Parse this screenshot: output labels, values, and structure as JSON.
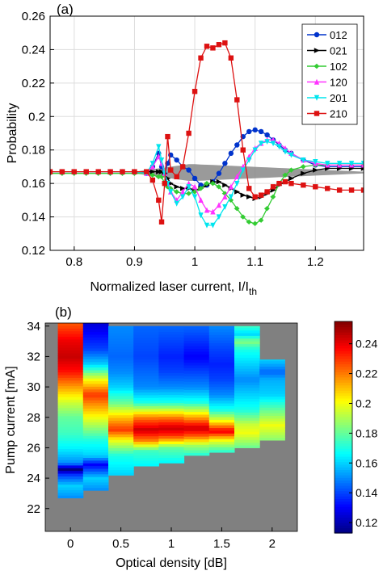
{
  "chart_data": [
    {
      "type": "line",
      "panel_label": "(a)",
      "xlabel": "Normalized laser current, I/I",
      "xlabel_sub": "th",
      "ylabel": "Probability",
      "xlim": [
        0.76,
        1.28
      ],
      "ylim": [
        0.12,
        0.26
      ],
      "xticks": [
        0.8,
        0.9,
        1,
        1.1,
        1.2
      ],
      "xtick_labels": [
        "0.8",
        "0.9",
        "1",
        "1.1",
        "1.2"
      ],
      "yticks": [
        0.12,
        0.14,
        0.16,
        0.18,
        0.2,
        0.22,
        0.24,
        0.26
      ],
      "ytick_labels": [
        "0.12",
        "0.14",
        "0.16",
        "0.18",
        "0.2",
        "0.22",
        "0.24",
        "0.26"
      ],
      "grid": true,
      "legend_position": "top-right",
      "x": [
        0.76,
        0.78,
        0.8,
        0.82,
        0.84,
        0.86,
        0.88,
        0.9,
        0.92,
        0.93,
        0.94,
        0.945,
        0.95,
        0.955,
        0.96,
        0.97,
        0.98,
        0.99,
        1.0,
        1.01,
        1.02,
        1.03,
        1.04,
        1.05,
        1.06,
        1.07,
        1.08,
        1.09,
        1.1,
        1.11,
        1.12,
        1.13,
        1.14,
        1.15,
        1.16,
        1.18,
        1.2,
        1.22,
        1.24,
        1.26,
        1.28
      ],
      "series": [
        {
          "name": "012",
          "color": "#0033cc",
          "marker": "circle",
          "values": [
            0.167,
            0.167,
            0.167,
            0.167,
            0.167,
            0.167,
            0.167,
            0.167,
            0.166,
            0.17,
            0.178,
            0.17,
            0.166,
            0.172,
            0.177,
            0.174,
            0.17,
            0.168,
            0.163,
            0.159,
            0.159,
            0.161,
            0.166,
            0.172,
            0.178,
            0.183,
            0.188,
            0.191,
            0.192,
            0.191,
            0.189,
            0.186,
            0.183,
            0.18,
            0.178,
            0.174,
            0.171,
            0.17,
            0.17,
            0.17,
            0.17
          ]
        },
        {
          "name": "021",
          "color": "#000000",
          "marker": "triangle-right",
          "values": [
            0.167,
            0.167,
            0.167,
            0.167,
            0.167,
            0.167,
            0.167,
            0.167,
            0.167,
            0.167,
            0.167,
            0.167,
            0.166,
            0.163,
            0.16,
            0.158,
            0.157,
            0.157,
            0.156,
            0.157,
            0.159,
            0.161,
            0.161,
            0.159,
            0.157,
            0.155,
            0.153,
            0.152,
            0.151,
            0.152,
            0.154,
            0.156,
            0.159,
            0.161,
            0.163,
            0.166,
            0.168,
            0.169,
            0.169,
            0.169,
            0.169
          ]
        },
        {
          "name": "102",
          "color": "#33cc33",
          "marker": "diamond-left",
          "values": [
            0.166,
            0.166,
            0.166,
            0.166,
            0.166,
            0.166,
            0.166,
            0.166,
            0.166,
            0.165,
            0.164,
            0.164,
            0.16,
            0.158,
            0.157,
            0.155,
            0.154,
            0.154,
            0.155,
            0.157,
            0.16,
            0.16,
            0.158,
            0.154,
            0.15,
            0.145,
            0.14,
            0.137,
            0.136,
            0.138,
            0.145,
            0.152,
            0.16,
            0.165,
            0.168,
            0.17,
            0.171,
            0.171,
            0.171,
            0.171,
            0.171
          ]
        },
        {
          "name": "120",
          "color": "#ff33ff",
          "marker": "triangle-up",
          "values": [
            0.167,
            0.167,
            0.167,
            0.167,
            0.167,
            0.167,
            0.167,
            0.167,
            0.166,
            0.17,
            0.176,
            0.172,
            0.166,
            0.16,
            0.155,
            0.15,
            0.155,
            0.16,
            0.158,
            0.15,
            0.144,
            0.143,
            0.147,
            0.152,
            0.158,
            0.164,
            0.17,
            0.176,
            0.181,
            0.184,
            0.186,
            0.186,
            0.184,
            0.181,
            0.178,
            0.174,
            0.172,
            0.171,
            0.171,
            0.171,
            0.171
          ]
        },
        {
          "name": "201",
          "color": "#00e5ee",
          "marker": "triangle-down",
          "values": [
            0.167,
            0.167,
            0.167,
            0.167,
            0.167,
            0.167,
            0.167,
            0.167,
            0.166,
            0.172,
            0.182,
            0.174,
            0.166,
            0.16,
            0.155,
            0.148,
            0.152,
            0.158,
            0.152,
            0.141,
            0.135,
            0.135,
            0.14,
            0.146,
            0.152,
            0.16,
            0.168,
            0.174,
            0.18,
            0.184,
            0.185,
            0.184,
            0.182,
            0.179,
            0.177,
            0.174,
            0.173,
            0.172,
            0.172,
            0.172,
            0.172
          ]
        },
        {
          "name": "210",
          "color": "#dd1111",
          "marker": "square",
          "values": [
            0.167,
            0.167,
            0.167,
            0.167,
            0.167,
            0.167,
            0.167,
            0.167,
            0.167,
            0.162,
            0.15,
            0.137,
            0.16,
            0.188,
            0.168,
            0.164,
            0.17,
            0.19,
            0.215,
            0.235,
            0.242,
            0.241,
            0.243,
            0.244,
            0.235,
            0.21,
            0.18,
            0.157,
            0.152,
            0.153,
            0.155,
            0.158,
            0.16,
            0.161,
            0.16,
            0.159,
            0.158,
            0.157,
            0.156,
            0.156,
            0.156
          ]
        }
      ]
    },
    {
      "type": "heatmap",
      "panel_label": "(b)",
      "xlabel": "Optical density [dB]",
      "ylabel": "Pump current [mA]",
      "xlim": [
        -0.25,
        2.25
      ],
      "ylim": [
        20.5,
        34.2
      ],
      "xticks": [
        0,
        0.5,
        1,
        1.5,
        2
      ],
      "xtick_labels": [
        "0",
        "0.5",
        "1",
        "1.5",
        "2"
      ],
      "yticks": [
        22,
        24,
        26,
        28,
        30,
        32,
        34
      ],
      "ytick_labels": [
        "22",
        "24",
        "26",
        "28",
        "30",
        "32",
        "34"
      ],
      "colorbar_range": [
        0.113,
        0.255
      ],
      "colorbar_ticks": [
        0.12,
        0.14,
        0.16,
        0.18,
        0.2,
        0.22,
        0.24
      ],
      "colorbar_tick_labels": [
        "0.12",
        "0.14",
        "0.16",
        "0.18",
        "0.2",
        "0.22",
        "0.24"
      ],
      "background_color": "#808080",
      "colormap": "jet",
      "columns": [
        {
          "density": 0.0,
          "i_min": 22.7,
          "i_max": 34.2,
          "stops": [
            [
              22.7,
              0.15
            ],
            [
              23.5,
              0.16
            ],
            [
              24.2,
              0.14
            ],
            [
              24.6,
              0.113
            ],
            [
              25.0,
              0.15
            ],
            [
              26.0,
              0.165
            ],
            [
              27.0,
              0.175
            ],
            [
              28.0,
              0.18
            ],
            [
              29.0,
              0.195
            ],
            [
              30.0,
              0.215
            ],
            [
              31.0,
              0.235
            ],
            [
              32.0,
              0.245
            ],
            [
              33.0,
              0.24
            ],
            [
              34.2,
              0.225
            ]
          ]
        },
        {
          "density": 0.25,
          "i_min": 23.2,
          "i_max": 34.2,
          "stops": [
            [
              23.2,
              0.15
            ],
            [
              24.0,
              0.16
            ],
            [
              24.9,
              0.13
            ],
            [
              25.5,
              0.16
            ],
            [
              26.5,
              0.17
            ],
            [
              27.5,
              0.19
            ],
            [
              28.5,
              0.21
            ],
            [
              29.5,
              0.23
            ],
            [
              30.5,
              0.2
            ],
            [
              31.5,
              0.16
            ],
            [
              32.5,
              0.14
            ],
            [
              34.2,
              0.125
            ]
          ]
        },
        {
          "density": 0.5,
          "i_min": 24.2,
          "i_max": 34.0,
          "stops": [
            [
              24.2,
              0.16
            ],
            [
              25.5,
              0.17
            ],
            [
              26.5,
              0.2
            ],
            [
              27.2,
              0.23
            ],
            [
              28.0,
              0.21
            ],
            [
              29.0,
              0.18
            ],
            [
              30.0,
              0.16
            ],
            [
              31.0,
              0.15
            ],
            [
              32.0,
              0.145
            ],
            [
              34.0,
              0.15
            ]
          ]
        },
        {
          "density": 0.75,
          "i_min": 24.8,
          "i_max": 34.0,
          "stops": [
            [
              24.8,
              0.165
            ],
            [
              25.8,
              0.175
            ],
            [
              26.5,
              0.22
            ],
            [
              27.2,
              0.245
            ],
            [
              28.0,
              0.22
            ],
            [
              29.0,
              0.17
            ],
            [
              30.0,
              0.15
            ],
            [
              31.0,
              0.145
            ],
            [
              32.0,
              0.14
            ],
            [
              34.0,
              0.145
            ]
          ]
        },
        {
          "density": 1.0,
          "i_min": 25.0,
          "i_max": 34.0,
          "stops": [
            [
              25.0,
              0.165
            ],
            [
              26.0,
              0.18
            ],
            [
              26.8,
              0.23
            ],
            [
              27.3,
              0.245
            ],
            [
              28.0,
              0.22
            ],
            [
              29.0,
              0.17
            ],
            [
              30.0,
              0.15
            ],
            [
              31.0,
              0.14
            ],
            [
              32.0,
              0.135
            ],
            [
              34.0,
              0.145
            ]
          ]
        },
        {
          "density": 1.25,
          "i_min": 25.5,
          "i_max": 34.0,
          "stops": [
            [
              25.5,
              0.17
            ],
            [
              26.2,
              0.19
            ],
            [
              26.8,
              0.225
            ],
            [
              27.3,
              0.245
            ],
            [
              28.0,
              0.215
            ],
            [
              29.0,
              0.17
            ],
            [
              30.0,
              0.15
            ],
            [
              31.0,
              0.14
            ],
            [
              32.0,
              0.13
            ],
            [
              34.0,
              0.145
            ]
          ]
        },
        {
          "density": 1.5,
          "i_min": 25.7,
          "i_max": 34.0,
          "stops": [
            [
              25.7,
              0.17
            ],
            [
              26.5,
              0.2
            ],
            [
              27.1,
              0.24
            ],
            [
              27.8,
              0.2
            ],
            [
              28.5,
              0.17
            ],
            [
              29.5,
              0.15
            ],
            [
              30.5,
              0.14
            ],
            [
              31.5,
              0.135
            ],
            [
              32.5,
              0.14
            ],
            [
              34.0,
              0.15
            ]
          ]
        },
        {
          "density": 1.75,
          "i_min": 26.0,
          "i_max": 34.0,
          "stops": [
            [
              26.0,
              0.18
            ],
            [
              27.0,
              0.2
            ],
            [
              27.5,
              0.195
            ],
            [
              28.5,
              0.17
            ],
            [
              29.5,
              0.16
            ],
            [
              30.5,
              0.15
            ],
            [
              31.5,
              0.16
            ],
            [
              32.5,
              0.17
            ],
            [
              33.0,
              0.185
            ],
            [
              33.5,
              0.16
            ],
            [
              34.0,
              0.175
            ]
          ]
        },
        {
          "density": 2.0,
          "i_min": 26.5,
          "i_max": 31.8,
          "stops": [
            [
              26.5,
              0.185
            ],
            [
              27.5,
              0.2
            ],
            [
              28.5,
              0.18
            ],
            [
              29.5,
              0.16
            ],
            [
              30.5,
              0.155
            ],
            [
              31.0,
              0.145
            ],
            [
              31.8,
              0.16
            ]
          ]
        }
      ]
    }
  ]
}
